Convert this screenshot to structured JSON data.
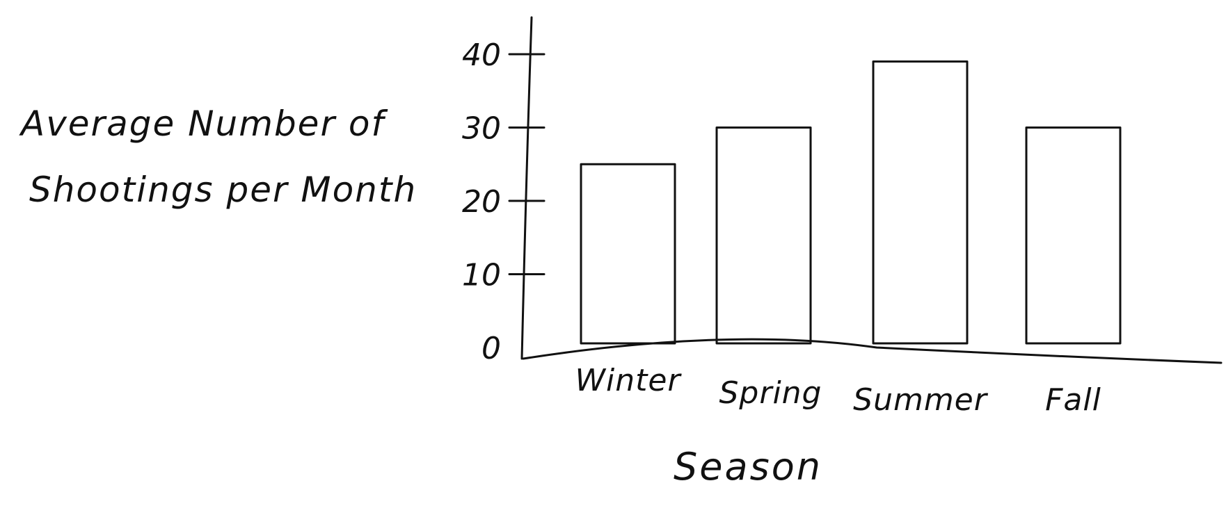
{
  "chart_data": {
    "type": "bar",
    "title": "",
    "ylabel": [
      "Average Number of",
      "Shootings per Month"
    ],
    "xlabel": "Season",
    "categories": [
      "Winter",
      "Spring",
      "Summer",
      "Fall"
    ],
    "values": [
      25,
      30,
      39,
      30
    ],
    "ylim": [
      0,
      40
    ],
    "yticks": [
      0,
      10,
      20,
      30,
      40
    ],
    "grid": false,
    "legend": "none",
    "colors": {
      "ink": "#111111",
      "background": "#ffffff",
      "bar_fill": "#ffffff"
    }
  }
}
